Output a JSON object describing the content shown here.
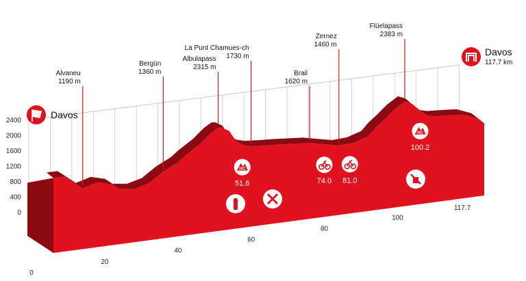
{
  "chart_data": {
    "type": "area",
    "title": "",
    "xlabel": "",
    "ylabel": "",
    "unit_distance": "km",
    "unit_altitude": "m",
    "ylim": [
      0,
      2400
    ],
    "xlim": [
      0,
      117.7
    ],
    "y_ticks": [
      "2400",
      "2000",
      "1600",
      "1200",
      "800",
      "400",
      "0"
    ],
    "x_ticks": [
      "0",
      "20",
      "40",
      "60",
      "80",
      "100",
      "117.7"
    ],
    "profile": {
      "x": [
        0,
        3,
        8,
        12,
        16,
        18,
        22,
        26,
        30,
        34,
        36,
        40,
        43,
        45,
        46,
        48,
        50,
        52,
        54,
        58,
        62,
        66,
        70,
        74,
        78,
        82,
        86,
        88,
        90,
        93,
        96,
        98,
        100.2,
        102,
        104,
        108,
        112,
        116,
        117.7
      ],
      "y": [
        1560,
        1560,
        1190,
        1300,
        1200,
        1050,
        1000,
        1100,
        1360,
        1550,
        1700,
        1950,
        2200,
        2315,
        2310,
        2200,
        1900,
        1780,
        1730,
        1700,
        1680,
        1650,
        1620,
        1540,
        1460,
        1480,
        1600,
        1800,
        1950,
        2200,
        2383,
        2300,
        2100,
        1950,
        1900,
        1880,
        1850,
        1700,
        1560
      ]
    },
    "start": {
      "name": "Davos"
    },
    "finish": {
      "name": "Davos",
      "distance": "117.7 km"
    },
    "passes": [
      {
        "name": "Alvaneu",
        "altitude": "1190 m",
        "x": 8
      },
      {
        "name": "Bergün",
        "altitude": "1360 m",
        "x": 30
      },
      {
        "name": "Albulapass",
        "altitude": "2315 m",
        "x": 45
      },
      {
        "name": "La Punt Chamues-ch",
        "altitude": "1730 m",
        "x": 54
      },
      {
        "name": "Brail",
        "altitude": "1620 m",
        "x": 70
      },
      {
        "name": "Zernez",
        "altitude": "1460 m",
        "x": 78
      },
      {
        "name": "Flüelapass",
        "altitude": "2383 m",
        "x": 96
      }
    ],
    "markers": [
      {
        "icon": "hc-climb-icon",
        "km": "51.6",
        "x": 51.6,
        "y": 1750
      },
      {
        "icon": "sprint-icon",
        "km": "74.0",
        "x": 74.0,
        "y": 1540
      },
      {
        "icon": "sprint-icon",
        "km": "81.0",
        "x": 81.0,
        "y": 1470
      },
      {
        "icon": "hc-climb-icon",
        "km": "100.2",
        "x": 100.2,
        "y": 2100
      }
    ],
    "service_icons": [
      {
        "icon": "water-bottle-icon",
        "x": 48,
        "y": 450
      },
      {
        "icon": "feed-zone-icon",
        "x": 55,
        "y": 560
      },
      {
        "icon": "no-litter-icon",
        "x": 92,
        "y": 850
      }
    ]
  },
  "colors": {
    "profile_red": "#e0121f",
    "profile_dark": "#b30d17",
    "profile_darker": "#8c0a12",
    "grid": "#c8c8c8",
    "marker": "#e0121f"
  }
}
